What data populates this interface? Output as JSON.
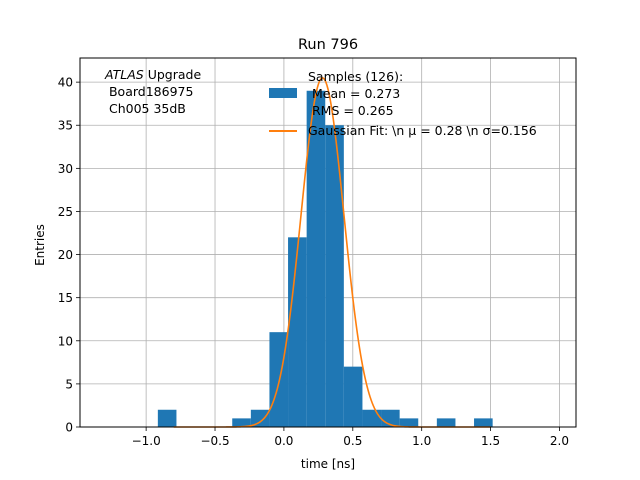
{
  "chart_data": {
    "type": "bar",
    "title": "Run 796",
    "xlabel": "time [ns]",
    "ylabel": "Entries",
    "xlim": [
      -1.48,
      2.12
    ],
    "ylim": [
      0,
      42.8
    ],
    "grid": true,
    "legend_position": "top-right",
    "xticks": [
      -1.0,
      -0.5,
      0.0,
      0.5,
      1.0,
      1.5,
      2.0
    ],
    "xtick_labels": [
      "−1.0",
      "−0.5",
      "0.0",
      "0.5",
      "1.0",
      "1.5",
      "2.0"
    ],
    "yticks": [
      0,
      5,
      10,
      15,
      20,
      25,
      30,
      35,
      40
    ],
    "yticks_labels": [
      "0",
      "5",
      "10",
      "15",
      "20",
      "25",
      "30",
      "35",
      "40"
    ],
    "bin_width": 0.135,
    "histogram": {
      "name": "Samples (126):\n Mean = 0.273\n RMS = 0.265",
      "color": "#1f77b4",
      "bins": [
        {
          "x0": -0.915,
          "count": 2
        },
        {
          "x0": -0.375,
          "count": 1
        },
        {
          "x0": -0.24,
          "count": 2
        },
        {
          "x0": -0.105,
          "count": 11
        },
        {
          "x0": 0.03,
          "count": 22
        },
        {
          "x0": 0.165,
          "count": 39
        },
        {
          "x0": 0.3,
          "count": 35
        },
        {
          "x0": 0.435,
          "count": 7
        },
        {
          "x0": 0.57,
          "count": 2
        },
        {
          "x0": 0.705,
          "count": 2
        },
        {
          "x0": 0.84,
          "count": 1
        },
        {
          "x0": 1.11,
          "count": 1
        },
        {
          "x0": 1.38,
          "count": 1
        }
      ]
    },
    "fit": {
      "name": "Gaussian Fit: \\n $\\mu$ = 0.28 \\n $\\sigma$=0.156",
      "color": "#ff7f0e",
      "mu": 0.28,
      "sigma": 0.156,
      "amplitude": 40.5,
      "x_range": [
        -0.8,
        1.5
      ]
    },
    "legend_entries": [
      {
        "lines": [
          "Samples (126):",
          " Mean = 0.273",
          " RMS = 0.265"
        ],
        "kind": "patch",
        "color": "#1f77b4"
      },
      {
        "lines": [
          "Gaussian Fit: \\n μ = 0.28 \\n σ=0.156"
        ],
        "kind": "line",
        "color": "#ff7f0e"
      }
    ],
    "annotation": {
      "atlas": "ATLAS",
      "upgrade": " Upgrade",
      "line2": " Board186975",
      "line3": " Ch005 35dB"
    }
  }
}
